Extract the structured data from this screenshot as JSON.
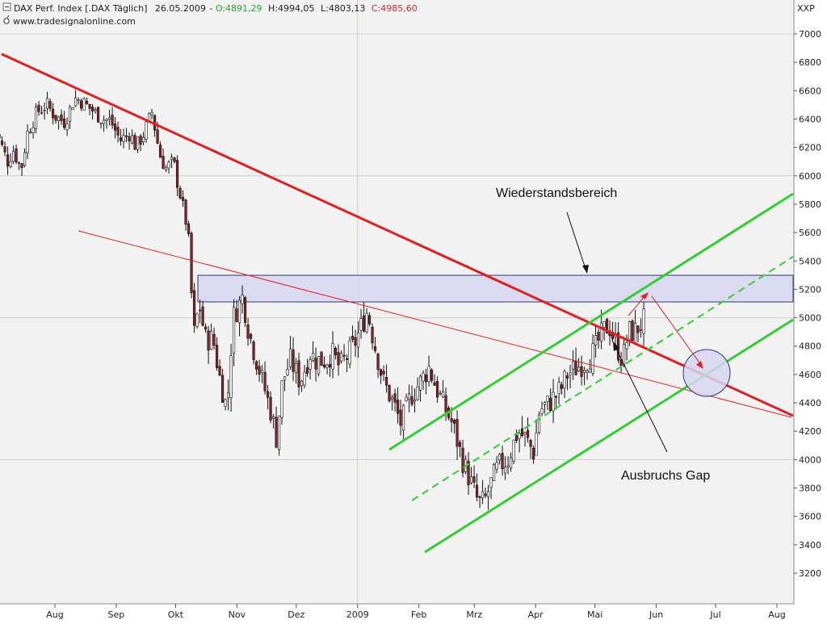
{
  "header": {
    "title": "DAX Perf. Index [.DAX  Täglich]",
    "date": "26.05.2009",
    "open": "O:4891,29",
    "high": "H:4994,05",
    "low": "L:4803,13",
    "close": "C:4985,60",
    "source": "www.tradesignalonline.com",
    "exchange": "XXP"
  },
  "chart_data": {
    "type": "candlestick",
    "y_ticks": [
      3200,
      3400,
      3600,
      3800,
      4000,
      4200,
      4400,
      4600,
      4800,
      5000,
      5200,
      5400,
      5600,
      5800,
      6000,
      6200,
      6400,
      6600,
      6800,
      7000
    ],
    "y_tick_labels": [
      "3200",
      "3400",
      "3600",
      "3800",
      "4000",
      "4200",
      "4400",
      "4600",
      "4800",
      "5000",
      "5200",
      "5400",
      "5600",
      "5800",
      "6000",
      "6200",
      "6400",
      "6600",
      "6800",
      "7000"
    ],
    "ylim": [
      3050,
      7150
    ],
    "x_ticks": [
      {
        "label": "Aug",
        "date": "2008-08-01"
      },
      {
        "label": "Sep",
        "date": "2008-09-01"
      },
      {
        "label": "Okt",
        "date": "2008-10-01"
      },
      {
        "label": "Nov",
        "date": "2008-11-01"
      },
      {
        "label": "Dez",
        "date": "2008-12-01"
      },
      {
        "label": "2009",
        "date": "2009-01-01"
      },
      {
        "label": "Feb",
        "date": "2009-02-01"
      },
      {
        "label": "Mrz",
        "date": "2009-03-01"
      },
      {
        "label": "Apr",
        "date": "2009-04-01"
      },
      {
        "label": "Mai",
        "date": "2009-05-01"
      },
      {
        "label": "Jun",
        "date": "2009-06-01"
      },
      {
        "label": "Jul",
        "date": "2009-07-01"
      },
      {
        "label": "Aug",
        "date": "2009-08-01"
      }
    ],
    "xlim": [
      "2008-07-01",
      "2009-08-15"
    ],
    "grid": true,
    "closes": [
      {
        "date": "2008-07-01",
        "close": 6350
      },
      {
        "date": "2008-07-04",
        "close": 6250
      },
      {
        "date": "2008-07-08",
        "close": 6100
      },
      {
        "date": "2008-07-11",
        "close": 6180
      },
      {
        "date": "2008-07-15",
        "close": 6050
      },
      {
        "date": "2008-07-18",
        "close": 6300
      },
      {
        "date": "2008-07-23",
        "close": 6450
      },
      {
        "date": "2008-07-28",
        "close": 6500
      },
      {
        "date": "2008-08-01",
        "close": 6420
      },
      {
        "date": "2008-08-06",
        "close": 6380
      },
      {
        "date": "2008-08-11",
        "close": 6550
      },
      {
        "date": "2008-08-15",
        "close": 6520
      },
      {
        "date": "2008-08-20",
        "close": 6460
      },
      {
        "date": "2008-08-25",
        "close": 6400
      },
      {
        "date": "2008-08-29",
        "close": 6390
      },
      {
        "date": "2008-09-03",
        "close": 6250
      },
      {
        "date": "2008-09-08",
        "close": 6300
      },
      {
        "date": "2008-09-11",
        "close": 6200
      },
      {
        "date": "2008-09-15",
        "close": 6300
      },
      {
        "date": "2008-09-19",
        "close": 6450
      },
      {
        "date": "2008-09-23",
        "close": 6150
      },
      {
        "date": "2008-09-26",
        "close": 6050
      },
      {
        "date": "2008-09-30",
        "close": 6100
      },
      {
        "date": "2008-10-02",
        "close": 5950
      },
      {
        "date": "2008-10-06",
        "close": 5700
      },
      {
        "date": "2008-10-08",
        "close": 5500
      },
      {
        "date": "2008-10-10",
        "close": 4850
      },
      {
        "date": "2008-10-13",
        "close": 5100
      },
      {
        "date": "2008-10-16",
        "close": 4850
      },
      {
        "date": "2008-10-20",
        "close": 4850
      },
      {
        "date": "2008-10-23",
        "close": 4600
      },
      {
        "date": "2008-10-27",
        "close": 4350
      },
      {
        "date": "2008-10-30",
        "close": 5000
      },
      {
        "date": "2008-11-04",
        "close": 5150
      },
      {
        "date": "2008-11-07",
        "close": 4900
      },
      {
        "date": "2008-11-11",
        "close": 4700
      },
      {
        "date": "2008-11-14",
        "close": 4550
      },
      {
        "date": "2008-11-18",
        "close": 4350
      },
      {
        "date": "2008-11-21",
        "close": 4150
      },
      {
        "date": "2008-11-24",
        "close": 4550
      },
      {
        "date": "2008-11-28",
        "close": 4700
      },
      {
        "date": "2008-12-03",
        "close": 4550
      },
      {
        "date": "2008-12-08",
        "close": 4750
      },
      {
        "date": "2008-12-11",
        "close": 4700
      },
      {
        "date": "2008-12-16",
        "close": 4700
      },
      {
        "date": "2008-12-19",
        "close": 4750
      },
      {
        "date": "2008-12-23",
        "close": 4650
      },
      {
        "date": "2008-12-30",
        "close": 4800
      },
      {
        "date": "2009-01-06",
        "close": 5050
      },
      {
        "date": "2009-01-09",
        "close": 4850
      },
      {
        "date": "2009-01-14",
        "close": 4550
      },
      {
        "date": "2009-01-19",
        "close": 4400
      },
      {
        "date": "2009-01-23",
        "close": 4250
      },
      {
        "date": "2009-01-28",
        "close": 4450
      },
      {
        "date": "2009-02-02",
        "close": 4550
      },
      {
        "date": "2009-02-06",
        "close": 4650
      },
      {
        "date": "2009-02-10",
        "close": 4500
      },
      {
        "date": "2009-02-13",
        "close": 4400
      },
      {
        "date": "2009-02-18",
        "close": 4250
      },
      {
        "date": "2009-02-23",
        "close": 4000
      },
      {
        "date": "2009-02-27",
        "close": 3850
      },
      {
        "date": "2009-03-03",
        "close": 3700
      },
      {
        "date": "2009-03-06",
        "close": 3700
      },
      {
        "date": "2009-03-10",
        "close": 3850
      },
      {
        "date": "2009-03-13",
        "close": 3950
      },
      {
        "date": "2009-03-18",
        "close": 4000
      },
      {
        "date": "2009-03-23",
        "close": 4200
      },
      {
        "date": "2009-03-27",
        "close": 4150
      },
      {
        "date": "2009-03-31",
        "close": 4050
      },
      {
        "date": "2009-04-03",
        "close": 4350
      },
      {
        "date": "2009-04-08",
        "close": 4400
      },
      {
        "date": "2009-04-14",
        "close": 4500
      },
      {
        "date": "2009-04-17",
        "close": 4600
      },
      {
        "date": "2009-04-22",
        "close": 4650
      },
      {
        "date": "2009-04-27",
        "close": 4700
      },
      {
        "date": "2009-04-30",
        "close": 4750
      },
      {
        "date": "2009-05-05",
        "close": 4900
      },
      {
        "date": "2009-05-08",
        "close": 4950
      },
      {
        "date": "2009-05-12",
        "close": 4800
      },
      {
        "date": "2009-05-15",
        "close": 4700
      },
      {
        "date": "2009-05-18",
        "close": 4900
      },
      {
        "date": "2009-05-21",
        "close": 4900
      },
      {
        "date": "2009-05-26",
        "close": 4985.6
      }
    ]
  },
  "annotations": {
    "resistance_label": "Wiederstandsbereich",
    "gap_label": "Ausbruchs Gap"
  },
  "colors": {
    "up": "#ffffff",
    "down": "#8a2020",
    "wick": "#111111",
    "grid": "#c8d4c8",
    "plot_bg": "#f2f2f2",
    "trend_red": "#e02020",
    "channel_green": "#33cc33",
    "zone_fill": "#d6d6f0",
    "zone_stroke": "#333377"
  }
}
